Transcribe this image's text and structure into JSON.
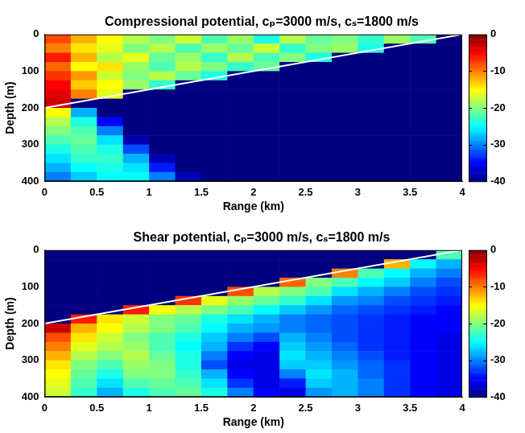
{
  "chart_data": [
    {
      "type": "heatmap",
      "title": "Compressional potential, cₚ=3000 m/s, cₛ=1800 m/s",
      "x_label": "Range (km)",
      "y_label": "Depth (m)",
      "xlim": [
        0,
        4
      ],
      "xticks": [
        0,
        0.5,
        1,
        1.5,
        2,
        2.5,
        3,
        3.5,
        4
      ],
      "ylim": [
        0,
        400
      ],
      "yticks": [
        0,
        100,
        200,
        300,
        400
      ],
      "cells": {
        "x_edges": [
          0,
          0.25,
          0.5,
          0.75,
          1,
          1.25,
          1.5,
          1.75,
          2,
          2.25,
          2.5,
          2.75,
          3,
          3.25,
          3.5,
          3.75,
          4
        ],
        "y_edges": [
          0,
          25,
          50,
          75,
          100,
          125,
          150,
          175,
          200,
          225,
          250,
          275,
          300,
          325,
          350,
          375,
          400
        ],
        "values": [
          [
            -8,
            -12,
            -15,
            -18,
            -20,
            -17,
            -22,
            -19,
            -24,
            -18,
            -21,
            -20,
            -23,
            -19,
            -22,
            -40
          ],
          [
            -10,
            -14,
            -16,
            -20,
            -18,
            -22,
            -19,
            -21,
            -17,
            -23,
            -20,
            -19,
            -24,
            -40,
            -40,
            -40
          ],
          [
            -6,
            -12,
            -18,
            -16,
            -21,
            -19,
            -23,
            -18,
            -22,
            -20,
            -24,
            -40,
            -40,
            -40,
            -40,
            -40
          ],
          [
            -9,
            -15,
            -14,
            -19,
            -22,
            -18,
            -20,
            -23,
            -21,
            -40,
            -40,
            -40,
            -40,
            -40,
            -40,
            -40
          ],
          [
            -7,
            -11,
            -17,
            -20,
            -18,
            -21,
            -24,
            -40,
            -40,
            -40,
            -40,
            -40,
            -40,
            -40,
            -40,
            -40
          ],
          [
            -5,
            -13,
            -15,
            -19,
            -23,
            -40,
            -40,
            -40,
            -40,
            -40,
            -40,
            -40,
            -40,
            -40,
            -40,
            -40
          ],
          [
            -4,
            -10,
            -16,
            -40,
            -40,
            -40,
            -40,
            -40,
            -40,
            -40,
            -40,
            -40,
            -40,
            -40,
            -40,
            -40
          ],
          [
            -3,
            -40,
            -40,
            -40,
            -40,
            -40,
            -40,
            -40,
            -40,
            -40,
            -40,
            -40,
            -40,
            -40,
            -40,
            -40
          ],
          [
            -15,
            -28,
            -40,
            -40,
            -40,
            -40,
            -40,
            -40,
            -40,
            -40,
            -40,
            -40,
            -40,
            -40,
            -40,
            -40
          ],
          [
            -18,
            -24,
            -35,
            -40,
            -40,
            -40,
            -40,
            -40,
            -40,
            -40,
            -40,
            -40,
            -40,
            -40,
            -40,
            -40
          ],
          [
            -20,
            -22,
            -30,
            -40,
            -40,
            -40,
            -40,
            -40,
            -40,
            -40,
            -40,
            -40,
            -40,
            -40,
            -40,
            -40
          ],
          [
            -22,
            -21,
            -26,
            -38,
            -40,
            -40,
            -40,
            -40,
            -40,
            -40,
            -40,
            -40,
            -40,
            -40,
            -40,
            -40
          ],
          [
            -24,
            -22,
            -24,
            -32,
            -40,
            -40,
            -40,
            -40,
            -40,
            -40,
            -40,
            -40,
            -40,
            -40,
            -40,
            -40
          ],
          [
            -26,
            -23,
            -23,
            -28,
            -38,
            -40,
            -40,
            -40,
            -40,
            -40,
            -40,
            -40,
            -40,
            -40,
            -40,
            -40
          ],
          [
            -28,
            -25,
            -24,
            -26,
            -34,
            -40,
            -40,
            -40,
            -40,
            -40,
            -40,
            -40,
            -40,
            -40,
            -40,
            -40
          ],
          [
            -30,
            -27,
            -25,
            -25,
            -30,
            -38,
            -40,
            -40,
            -40,
            -40,
            -40,
            -40,
            -40,
            -40,
            -40,
            -40
          ]
        ]
      },
      "colorbar": {
        "range": [
          -40,
          0
        ],
        "ticks": [
          0,
          -10,
          -20,
          -30,
          -40
        ]
      },
      "lines": [
        {
          "x": [
            0,
            4
          ],
          "y": [
            200,
            0
          ],
          "color": "#ffffff"
        }
      ]
    },
    {
      "type": "heatmap",
      "title": "Shear potential, cₚ=3000 m/s, cₛ=1800 m/s",
      "x_label": "Range (km)",
      "y_label": "Depth (m)",
      "xlim": [
        0,
        4
      ],
      "xticks": [
        0,
        0.5,
        1,
        1.5,
        2,
        2.5,
        3,
        3.5,
        4
      ],
      "ylim": [
        0,
        400
      ],
      "yticks": [
        0,
        100,
        200,
        300,
        400
      ],
      "cells": {
        "x_edges": [
          0,
          0.25,
          0.5,
          0.75,
          1,
          1.25,
          1.5,
          1.75,
          2,
          2.25,
          2.5,
          2.75,
          3,
          3.25,
          3.5,
          3.75,
          4
        ],
        "y_edges": [
          0,
          25,
          50,
          75,
          100,
          125,
          150,
          175,
          200,
          225,
          250,
          275,
          300,
          325,
          350,
          375,
          400
        ],
        "values": [
          [
            -40,
            -40,
            -40,
            -40,
            -40,
            -40,
            -40,
            -40,
            -40,
            -40,
            -40,
            -40,
            -40,
            -40,
            -40,
            -22
          ],
          [
            -40,
            -40,
            -40,
            -40,
            -40,
            -40,
            -40,
            -40,
            -40,
            -40,
            -40,
            -40,
            -40,
            -12,
            -25,
            -28
          ],
          [
            -40,
            -40,
            -40,
            -40,
            -40,
            -40,
            -40,
            -40,
            -40,
            -40,
            -40,
            -10,
            -22,
            -25,
            -28,
            -30
          ],
          [
            -40,
            -40,
            -40,
            -40,
            -40,
            -40,
            -40,
            -40,
            -40,
            -9,
            -20,
            -22,
            -25,
            -27,
            -30,
            -32
          ],
          [
            -40,
            -40,
            -40,
            -40,
            -40,
            -40,
            -40,
            -8,
            -18,
            -20,
            -22,
            -26,
            -28,
            -30,
            -32,
            -33
          ],
          [
            -40,
            -40,
            -40,
            -40,
            -40,
            -7,
            -16,
            -19,
            -21,
            -23,
            -26,
            -29,
            -30,
            -32,
            -33,
            -34
          ],
          [
            -40,
            -40,
            -40,
            -6,
            -15,
            -18,
            -20,
            -22,
            -25,
            -27,
            -29,
            -31,
            -32,
            -33,
            -34,
            -35
          ],
          [
            -40,
            -6,
            -14,
            -17,
            -20,
            -21,
            -24,
            -26,
            -28,
            -30,
            -31,
            -32,
            -33,
            -34,
            -35,
            -35
          ],
          [
            -3,
            -12,
            -15,
            -18,
            -20,
            -22,
            -25,
            -28,
            -29,
            -30,
            -31,
            -32,
            -33,
            -34,
            -35,
            -35
          ],
          [
            -8,
            -14,
            -17,
            -20,
            -22,
            -24,
            -27,
            -30,
            -32,
            -28,
            -30,
            -32,
            -33,
            -34,
            -35,
            -36
          ],
          [
            -10,
            -16,
            -18,
            -19,
            -22,
            -25,
            -28,
            -33,
            -35,
            -27,
            -29,
            -31,
            -33,
            -34,
            -35,
            -36
          ],
          [
            -12,
            -18,
            -20,
            -18,
            -21,
            -24,
            -30,
            -35,
            -36,
            -26,
            -28,
            -30,
            -32,
            -34,
            -35,
            -36
          ],
          [
            -14,
            -20,
            -22,
            -19,
            -20,
            -24,
            -32,
            -36,
            -36,
            -27,
            -27,
            -29,
            -31,
            -33,
            -35,
            -36
          ],
          [
            -15,
            -21,
            -24,
            -20,
            -20,
            -23,
            -28,
            -35,
            -36,
            -30,
            -26,
            -28,
            -31,
            -33,
            -35,
            -36
          ],
          [
            -16,
            -22,
            -26,
            -22,
            -21,
            -22,
            -26,
            -33,
            -36,
            -34,
            -27,
            -28,
            -30,
            -33,
            -35,
            -36
          ],
          [
            -17,
            -23,
            -28,
            -24,
            -22,
            -21,
            -24,
            -30,
            -35,
            -36,
            -29,
            -28,
            -30,
            -33,
            -35,
            -36
          ]
        ]
      },
      "colorbar": {
        "range": [
          -40,
          0
        ],
        "ticks": [
          0,
          -10,
          -20,
          -30,
          -40
        ]
      },
      "lines": [
        {
          "x": [
            0,
            4
          ],
          "y": [
            200,
            0
          ],
          "color": "#ffffff"
        }
      ]
    }
  ]
}
